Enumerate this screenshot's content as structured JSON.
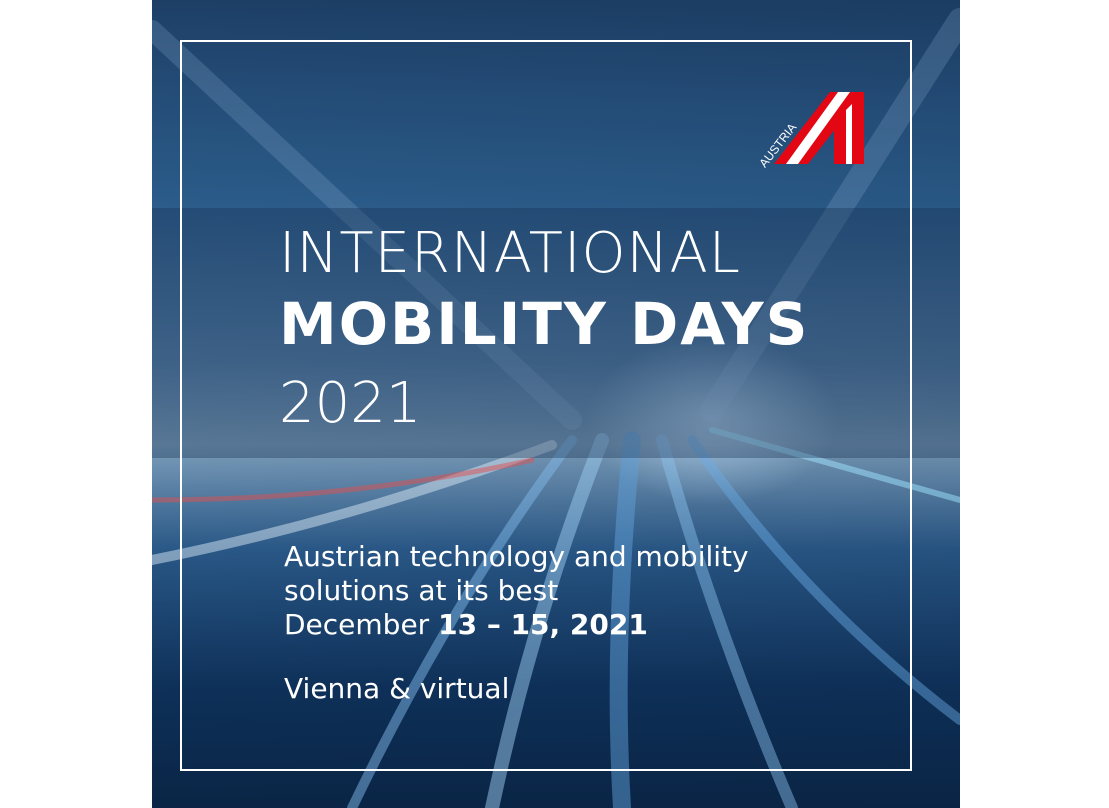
{
  "logo": {
    "text": "AUSTRIA",
    "colors": {
      "red": "#e30613",
      "white": "#ffffff"
    }
  },
  "title": {
    "line1": "INTERNATIONAL",
    "line2": "MOBILITY DAYS",
    "line3": "2021"
  },
  "subtitle": {
    "line1": "Austrian technology and mobility",
    "line2": "solutions at its best"
  },
  "date": {
    "prefix": "December ",
    "range": "13 – 15, 2021"
  },
  "location": "Vienna & virtual"
}
